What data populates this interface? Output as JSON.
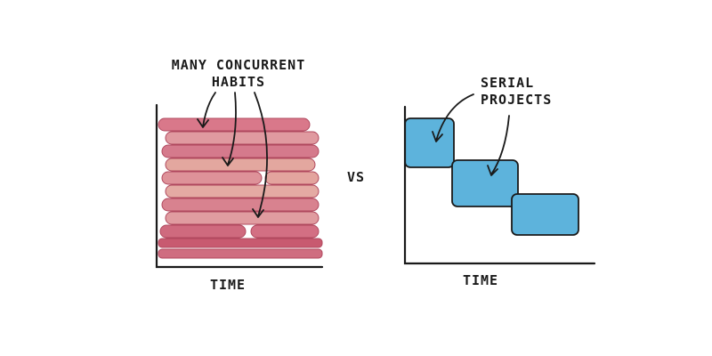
{
  "left": {
    "label_lines": [
      "MANY CONCURRENT",
      "HABITS"
    ],
    "axis_label": "TIME"
  },
  "separator": "VS",
  "right": {
    "label_lines": [
      "SERIAL",
      "PROJECTS"
    ],
    "axis_label": "TIME"
  }
}
